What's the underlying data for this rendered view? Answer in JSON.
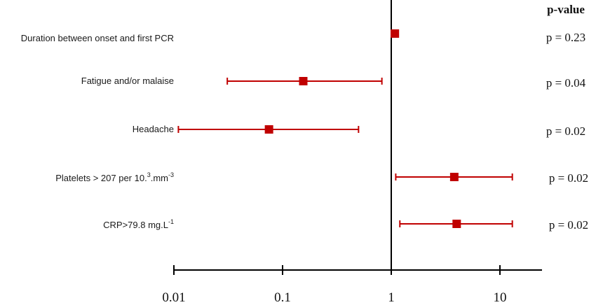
{
  "chart_data": {
    "type": "forest",
    "x_scale": "log",
    "xlim": [
      0.01,
      25
    ],
    "reference_line": 1,
    "x_ticks": [
      "0.01",
      "0.1",
      "1",
      "10"
    ],
    "x_tick_values": [
      0.01,
      0.1,
      1,
      10
    ],
    "pvalue_header": "p-value",
    "marker_color": "#c00000",
    "rows": [
      {
        "label": "Duration between onset and first PCR",
        "estimate": 1.08,
        "lower": 1.0,
        "upper": 1.15,
        "pvalue": "p = 0.23"
      },
      {
        "label": "Fatigue and/or malaise",
        "estimate": 0.155,
        "lower": 0.031,
        "upper": 0.82,
        "pvalue": "p = 0.04"
      },
      {
        "label": "Headache",
        "estimate": 0.075,
        "lower": 0.011,
        "upper": 0.5,
        "pvalue": "p = 0.02"
      },
      {
        "label": "Platelets   > 207 per 10.",
        "label_sup1": "3",
        "label_mid": ".mm",
        "label_sup2": "-3",
        "estimate": 3.8,
        "lower": 1.1,
        "upper": 13,
        "pvalue": "p = 0.02"
      },
      {
        "label": "CRP>79.8 mg.L",
        "label_sup1": "-1",
        "estimate": 4.0,
        "lower": 1.2,
        "upper": 13,
        "pvalue": "p = 0.02"
      }
    ]
  }
}
